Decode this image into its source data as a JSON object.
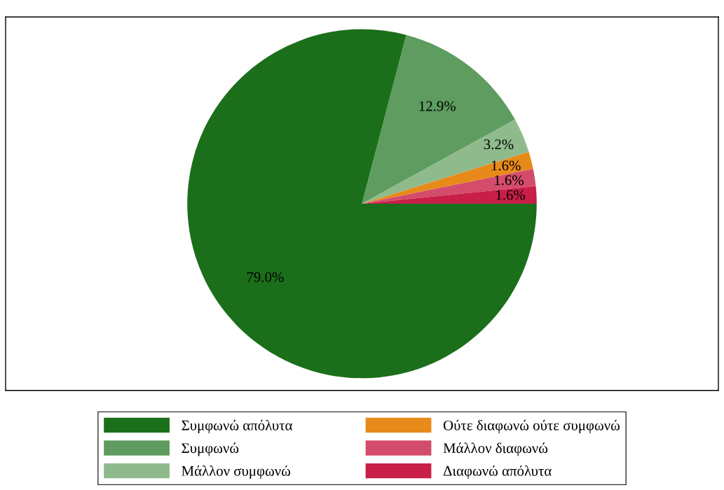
{
  "chart_data": {
    "type": "pie",
    "categories": [
      "Συμφωνώ απόλυτα",
      "Συμφωνώ",
      "Μάλλον συμφωνώ",
      "Ούτε διαφωνώ ούτε συμφωνώ",
      "Μάλλον διαφωνώ",
      "Διαφωνώ απόλυτα"
    ],
    "values": [
      79.0,
      12.9,
      3.2,
      1.6,
      1.6,
      1.6
    ],
    "value_labels": [
      "79.0%",
      "12.9%",
      "3.2%",
      "1.6%",
      "1.6%",
      "1.6%"
    ],
    "colors": [
      "#1b6f1a",
      "#5e9c5f",
      "#8fbb8c",
      "#e88a1a",
      "#d44c6b",
      "#c81e48"
    ],
    "legend": "bottom"
  }
}
